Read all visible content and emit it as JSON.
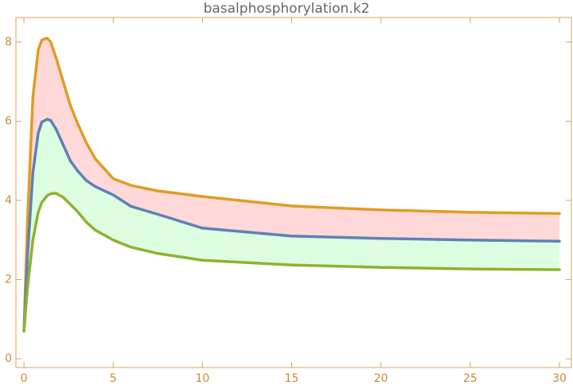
{
  "chart_data": {
    "type": "line",
    "title": "basalphosphorylation.k2",
    "x": [
      0,
      0.2,
      0.5,
      0.8,
      1,
      1.3,
      1.5,
      1.8,
      2.2,
      2.6,
      3,
      3.5,
      4,
      5,
      6,
      7.5,
      10,
      15,
      20,
      25,
      30
    ],
    "series": [
      {
        "color": "#e09c24",
        "values": [
          0.7,
          3.5,
          6.6,
          7.8,
          8.05,
          8.1,
          8.0,
          7.6,
          7.0,
          6.4,
          5.95,
          5.45,
          5.05,
          4.55,
          4.38,
          4.24,
          4.1,
          3.86,
          3.76,
          3.7,
          3.67
        ]
      },
      {
        "color": "#5e81b5",
        "values": [
          0.7,
          2.6,
          4.7,
          5.7,
          5.98,
          6.05,
          6.02,
          5.8,
          5.4,
          5.0,
          4.75,
          4.5,
          4.35,
          4.14,
          3.85,
          3.65,
          3.3,
          3.1,
          3.04,
          3.0,
          2.97
        ]
      },
      {
        "color": "#8fb131",
        "values": [
          0.7,
          1.8,
          3.0,
          3.7,
          3.95,
          4.12,
          4.17,
          4.18,
          4.08,
          3.9,
          3.72,
          3.45,
          3.25,
          3.0,
          2.82,
          2.66,
          2.49,
          2.37,
          2.31,
          2.27,
          2.25
        ]
      }
    ],
    "fills": [
      {
        "from": 0,
        "to": 1,
        "color": "#ffd9d9"
      },
      {
        "from": 1,
        "to": 2,
        "color": "#ddfde0"
      }
    ],
    "xlim": [
      -0.45,
      30.67
    ],
    "ylim": [
      -0.22,
      8.62
    ],
    "xticks": [
      0,
      5,
      10,
      15,
      20,
      25,
      30
    ],
    "yticks": [
      0,
      2,
      4,
      6,
      8
    ],
    "frame_color": "#d9a35a"
  }
}
